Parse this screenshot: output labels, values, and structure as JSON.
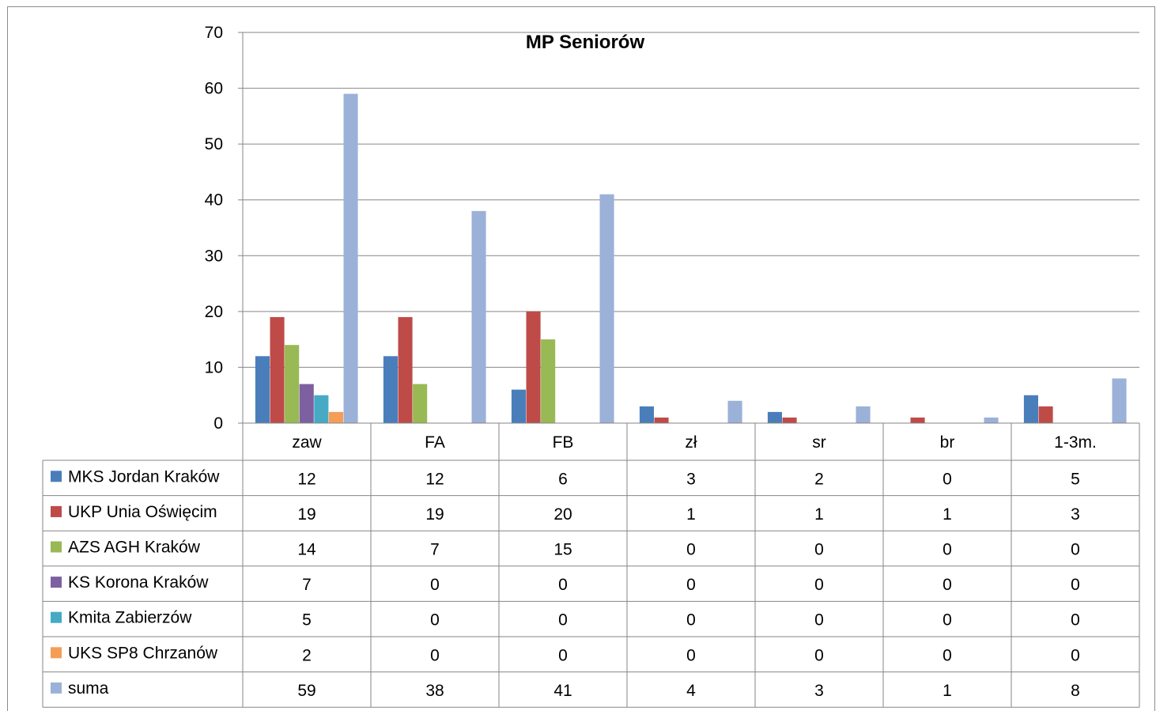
{
  "chart_data": {
    "type": "bar",
    "title": "MP Seniorów",
    "xlabel": "",
    "ylabel": "",
    "ylim": [
      0,
      70
    ],
    "yticks": [
      0,
      10,
      20,
      30,
      40,
      50,
      60,
      70
    ],
    "grid": true,
    "legend_placement": "data table (left of rows)",
    "categories": [
      "zaw",
      "FA",
      "FB",
      "zł",
      "sr",
      "br",
      "1-3m."
    ],
    "series": [
      {
        "name": "MKS Jordan Kraków",
        "color": "#4a7ebb",
        "values": [
          12,
          12,
          6,
          3,
          2,
          0,
          5
        ]
      },
      {
        "name": "UKP Unia Oświęcim",
        "color": "#be4b48",
        "values": [
          19,
          19,
          20,
          1,
          1,
          1,
          3
        ]
      },
      {
        "name": "AZS AGH Kraków",
        "color": "#98b954",
        "values": [
          14,
          7,
          15,
          0,
          0,
          0,
          0
        ]
      },
      {
        "name": "KS Korona Kraków",
        "color": "#7d60a0",
        "values": [
          7,
          0,
          0,
          0,
          0,
          0,
          0
        ]
      },
      {
        "name": "Kmita Zabierzów",
        "color": "#46aac5",
        "values": [
          5,
          0,
          0,
          0,
          0,
          0,
          0
        ]
      },
      {
        "name": "UKS SP8 Chrzanów",
        "color": "#f59d56",
        "values": [
          2,
          0,
          0,
          0,
          0,
          0,
          0
        ]
      },
      {
        "name": "suma",
        "color": "#9bb1d8",
        "values": [
          59,
          38,
          41,
          4,
          3,
          1,
          8
        ]
      }
    ]
  }
}
